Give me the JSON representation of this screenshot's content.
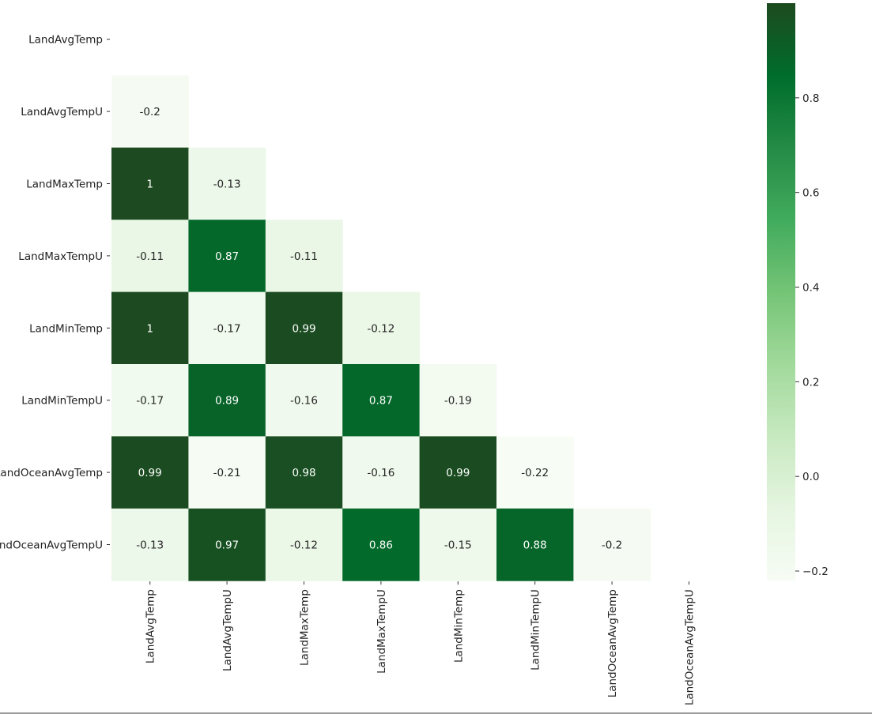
{
  "chart_data": {
    "type": "heatmap",
    "title": "",
    "xlabel": "",
    "ylabel": "",
    "variables": [
      "LandAvgTemp",
      "LandAvgTempU",
      "LandMaxTemp",
      "LandMaxTempU",
      "LandMinTemp",
      "LandMinTempU",
      "LandOceanAvgTemp",
      "LandOceanAvgTempU"
    ],
    "mask": "upper-triangle including diagonal",
    "rows": [
      {
        "label": "LandAvgTemp",
        "values": []
      },
      {
        "label": "LandAvgTempU",
        "values": [
          -0.2
        ]
      },
      {
        "label": "LandMaxTemp",
        "values": [
          1,
          -0.13
        ]
      },
      {
        "label": "LandMaxTempU",
        "values": [
          -0.11,
          0.87,
          -0.11
        ]
      },
      {
        "label": "LandMinTemp",
        "values": [
          1,
          -0.17,
          0.99,
          -0.12
        ]
      },
      {
        "label": "LandMinTempU",
        "values": [
          -0.17,
          0.89,
          -0.16,
          0.87,
          -0.19
        ]
      },
      {
        "label": "LandOceanAvgTemp",
        "values": [
          0.99,
          -0.21,
          0.98,
          -0.16,
          0.99,
          -0.22
        ]
      },
      {
        "label": "LandOceanAvgTempU",
        "values": [
          -0.13,
          0.97,
          -0.12,
          0.86,
          -0.15,
          0.88,
          -0.2
        ]
      }
    ],
    "colormap": "Greens",
    "colors": [
      "#f7fcf5",
      "#e5f5e0",
      "#c7e9c0",
      "#a1d99b",
      "#74c476",
      "#41ab5d",
      "#238b45",
      "#006d2c",
      "#1d4a20"
    ],
    "color_range": [
      -0.22,
      1
    ],
    "colorbar": {
      "ticks": [
        -0.2,
        0.0,
        0.2,
        0.4,
        0.6,
        0.8
      ],
      "tick_labels": [
        "−0.2",
        "0.0",
        "0.2",
        "0.4",
        "0.6",
        "0.8"
      ]
    },
    "annotations": true,
    "grid": false,
    "legend": "colorbar right"
  }
}
